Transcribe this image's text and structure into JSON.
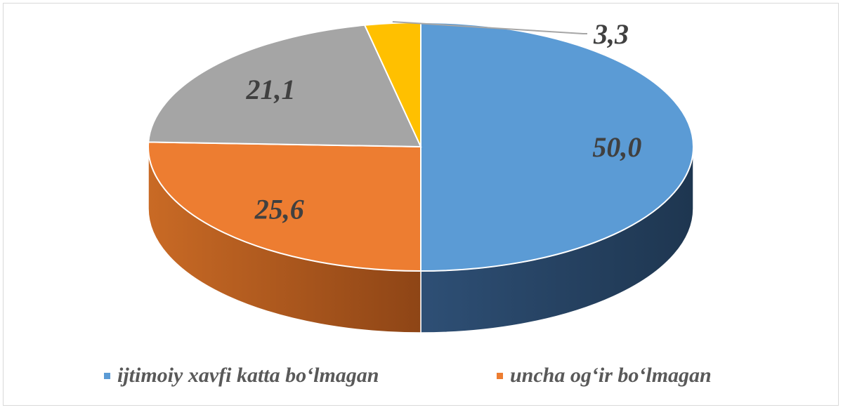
{
  "chart_data": {
    "type": "pie",
    "style": "3d",
    "categories": [
      "ijtimoiy xavfi katta bo‘lmagan",
      "uncha og‘ir bo‘lmagan",
      "",
      ""
    ],
    "values": [
      50.0,
      25.6,
      21.1,
      3.3
    ],
    "data_labels": [
      "50,0",
      "25,6",
      "21,1",
      "3,3"
    ],
    "colors": [
      "#5B9BD5",
      "#ED7D31",
      "#A5A5A5",
      "#FFC000"
    ],
    "side_colors": [
      "#213A56",
      "#A85318",
      "#6E6E6E",
      "#B58900"
    ],
    "legend": {
      "position": "bottom",
      "items": [
        {
          "label": "ijtimoiy xavfi katta bo‘lmagan",
          "color": "#5B9BD5"
        },
        {
          "label": "uncha og‘ir bo‘lmagan",
          "color": "#ED7D31"
        }
      ]
    },
    "title": ""
  }
}
